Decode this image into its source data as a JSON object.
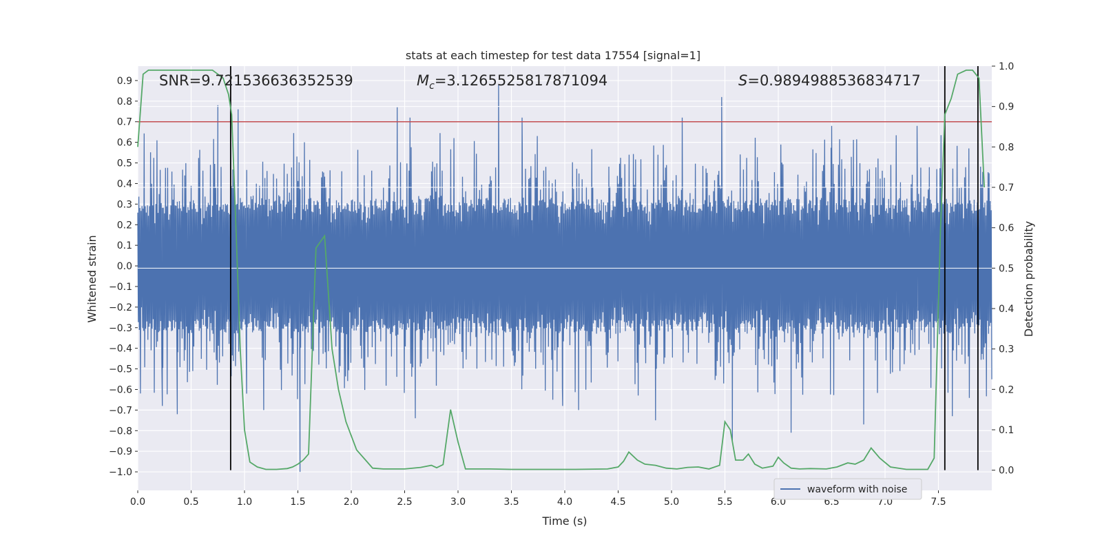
{
  "chart_data": {
    "type": "line",
    "title": "stats at each timestep for test data 17554 [signal=1]",
    "xlabel": "Time (s)",
    "ylabel_left": "Whitened strain",
    "ylabel_right": "Detection probability",
    "xlim": [
      0.0,
      8.0
    ],
    "ylim_left": [
      -1.09,
      0.97
    ],
    "ylim_right": [
      -0.05,
      1.0
    ],
    "xticks": [
      0.0,
      0.5,
      1.0,
      1.5,
      2.0,
      2.5,
      3.0,
      3.5,
      4.0,
      4.5,
      5.0,
      5.5,
      6.0,
      6.5,
      7.0,
      7.5
    ],
    "xtick_labels": [
      "0.0",
      "0.5",
      "1.0",
      "1.5",
      "2.0",
      "2.5",
      "3.0",
      "3.5",
      "4.0",
      "4.5",
      "5.0",
      "5.5",
      "6.0",
      "6.5",
      "7.0",
      "7.5"
    ],
    "yticks_left": [
      -1.0,
      -0.9,
      -0.8,
      -0.7,
      -0.6,
      -0.5,
      -0.4,
      -0.3,
      -0.2,
      -0.1,
      0.0,
      0.1,
      0.2,
      0.3,
      0.4,
      0.5,
      0.6,
      0.7,
      0.8,
      0.9
    ],
    "ytick_labels_left": [
      "−1.0",
      "−0.9",
      "−0.8",
      "−0.7",
      "−0.6",
      "−0.5",
      "−0.4",
      "−0.3",
      "−0.2",
      "−0.1",
      "0.0",
      "0.1",
      "0.2",
      "0.3",
      "0.4",
      "0.5",
      "0.6",
      "0.7",
      "0.8",
      "0.9"
    ],
    "yticks_right": [
      0.0,
      0.1,
      0.2,
      0.3,
      0.4,
      0.5,
      0.6,
      0.7,
      0.8,
      0.9,
      1.0
    ],
    "ytick_labels_right": [
      "0.0",
      "0.1",
      "0.2",
      "0.3",
      "0.4",
      "0.5",
      "0.6",
      "0.7",
      "0.8",
      "0.9",
      "1.0"
    ],
    "grid": true,
    "legend_position": "lower-right",
    "annotations": {
      "snr": "SNR=9.721536636352539",
      "mc_symbol": "M",
      "mc_subscript": "c",
      "mc_value": "=3.1265525817871094",
      "s_symbol": "S",
      "s_value": "=0.9894988536834717"
    },
    "threshold_line": {
      "y": 0.7,
      "color": "#c44e52"
    },
    "vertical_lines_x": [
      0.87,
      7.56,
      7.87
    ],
    "waveform": {
      "name": "waveform with noise",
      "color": "#4c72b0",
      "core_amplitude": 0.3,
      "typical_peak_range": [
        0.2,
        0.6
      ],
      "extreme_spikes": [
        {
          "x": 0.75,
          "y": 0.78
        },
        {
          "x": 0.87,
          "y": 0.72
        },
        {
          "x": 0.94,
          "y": 0.76
        },
        {
          "x": 1.52,
          "y": -1.0
        },
        {
          "x": 2.43,
          "y": 0.77
        },
        {
          "x": 3.38,
          "y": 0.88
        },
        {
          "x": 5.47,
          "y": 0.82
        },
        {
          "x": 5.57,
          "y": -0.85
        },
        {
          "x": 6.12,
          "y": -0.81
        },
        {
          "x": 1.02,
          "y": -0.62
        },
        {
          "x": 0.23,
          "y": -0.68
        },
        {
          "x": 0.37,
          "y": -0.72
        },
        {
          "x": 2.6,
          "y": -0.74
        },
        {
          "x": 4.13,
          "y": -0.7
        },
        {
          "x": 4.85,
          "y": -0.75
        },
        {
          "x": 6.8,
          "y": -0.77
        },
        {
          "x": 7.63,
          "y": -0.73
        },
        {
          "x": 1.18,
          "y": -0.7
        },
        {
          "x": 3.98,
          "y": -0.68
        },
        {
          "x": 5.1,
          "y": 0.72
        },
        {
          "x": 7.3,
          "y": 0.68
        },
        {
          "x": 2.55,
          "y": 0.72
        },
        {
          "x": 6.5,
          "y": 0.68
        },
        {
          "x": 3.6,
          "y": 0.72
        }
      ]
    },
    "probability": {
      "color": "#55a868",
      "x": [
        0.0,
        0.05,
        0.1,
        0.2,
        0.3,
        0.4,
        0.5,
        0.6,
        0.7,
        0.75,
        0.8,
        0.85,
        0.88,
        0.92,
        0.96,
        1.0,
        1.05,
        1.12,
        1.2,
        1.3,
        1.4,
        1.45,
        1.5,
        1.55,
        1.6,
        1.67,
        1.75,
        1.82,
        1.88,
        1.95,
        2.05,
        2.15,
        2.2,
        2.3,
        2.5,
        2.65,
        2.75,
        2.8,
        2.86,
        2.93,
        3.0,
        3.07,
        3.15,
        3.3,
        3.5,
        3.8,
        4.1,
        4.4,
        4.5,
        4.55,
        4.6,
        4.68,
        4.75,
        4.85,
        4.95,
        5.05,
        5.15,
        5.25,
        5.35,
        5.45,
        5.5,
        5.55,
        5.6,
        5.67,
        5.72,
        5.78,
        5.85,
        5.95,
        6.0,
        6.05,
        6.12,
        6.2,
        6.3,
        6.45,
        6.55,
        6.65,
        6.72,
        6.8,
        6.87,
        6.95,
        7.05,
        7.2,
        7.4,
        7.46,
        7.52,
        7.56,
        7.62,
        7.68,
        7.76,
        7.82,
        7.88,
        7.93
      ],
      "y": [
        0.8,
        0.98,
        0.99,
        0.99,
        0.99,
        0.99,
        0.99,
        0.99,
        0.99,
        0.98,
        0.97,
        0.93,
        0.88,
        0.6,
        0.3,
        0.1,
        0.02,
        0.008,
        0.002,
        0.002,
        0.004,
        0.008,
        0.015,
        0.025,
        0.04,
        0.55,
        0.58,
        0.3,
        0.2,
        0.12,
        0.05,
        0.02,
        0.005,
        0.003,
        0.003,
        0.007,
        0.012,
        0.006,
        0.014,
        0.15,
        0.07,
        0.003,
        0.003,
        0.003,
        0.002,
        0.002,
        0.002,
        0.003,
        0.008,
        0.022,
        0.045,
        0.025,
        0.015,
        0.012,
        0.005,
        0.003,
        0.007,
        0.008,
        0.003,
        0.012,
        0.12,
        0.1,
        0.025,
        0.025,
        0.04,
        0.015,
        0.005,
        0.01,
        0.032,
        0.018,
        0.005,
        0.003,
        0.004,
        0.003,
        0.008,
        0.018,
        0.015,
        0.025,
        0.055,
        0.03,
        0.008,
        0.002,
        0.002,
        0.03,
        0.6,
        0.88,
        0.92,
        0.98,
        0.99,
        0.99,
        0.97,
        0.7
      ]
    }
  }
}
